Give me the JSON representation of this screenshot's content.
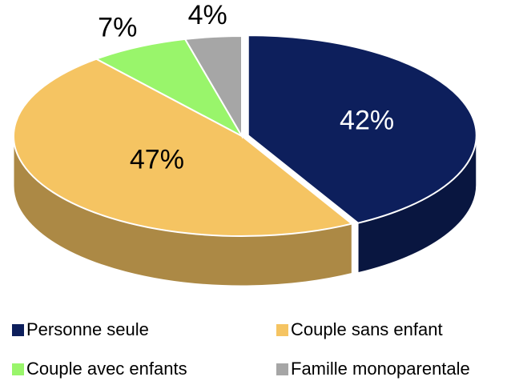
{
  "chart_data": {
    "type": "pie",
    "categories": [
      "Personne seule",
      "Couple sans enfant",
      "Couple avec enfants",
      "Famille monoparentale"
    ],
    "values": [
      42,
      47,
      7,
      4
    ],
    "value_labels": [
      "42%",
      "47%",
      "7%",
      "4%"
    ],
    "colors": [
      "#0d1f5c",
      "#f5c462",
      "#99f56b",
      "#a6a6a6"
    ],
    "legend": "bottom"
  }
}
